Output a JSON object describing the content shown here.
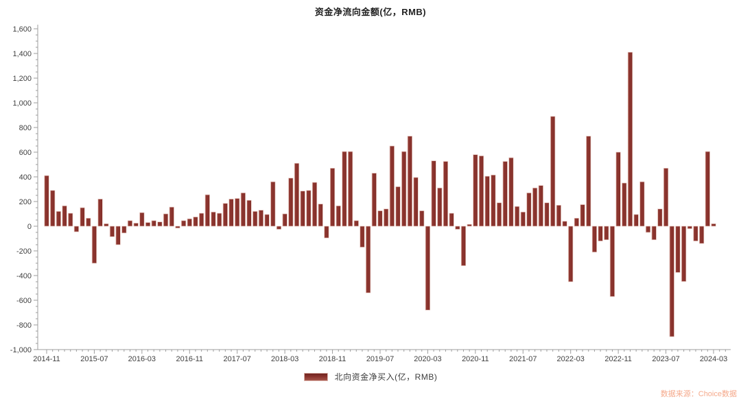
{
  "title": "资金净流向金额(亿，RMB)",
  "legend": {
    "label": "北向资金净买入(亿，RMB)"
  },
  "source": "数据来源：Choice数据",
  "colors": {
    "bar": "#8b342e",
    "bar_highlight": "#a5564b",
    "bar_dark": "#7c2923",
    "bar_edge": "#e6c6bf",
    "axis": "#9c9c9c",
    "tick_label": "#3f3f3f",
    "title_text": "#1f1f1f",
    "source_text": "#f5a98b"
  },
  "chart_data": {
    "type": "bar",
    "title": "资金净流向金额(亿，RMB)",
    "legend_position": "bottom",
    "grid": false,
    "ylim": [
      -1000,
      1600
    ],
    "y_tick_step": 200,
    "y_minor_tick_step": 50,
    "y_tick_labels": [
      "1,600",
      "1,400",
      "1,200",
      "1,000",
      "800",
      "600",
      "400",
      "200",
      "0",
      "-200",
      "-400",
      "-600",
      "-800",
      "-1,000"
    ],
    "x_label_interval": 8,
    "x_axis_labels": [
      "2014-11",
      "2015-07",
      "2016-03",
      "2016-11",
      "2017-07",
      "2018-03",
      "2018-11",
      "2019-07",
      "2020-03",
      "2020-11",
      "2021-07",
      "2022-03",
      "2022-11",
      "2023-07",
      "2024-03"
    ],
    "x": [
      "2014-11",
      "2014-12",
      "2015-01",
      "2015-02",
      "2015-03",
      "2015-04",
      "2015-05",
      "2015-06",
      "2015-07",
      "2015-08",
      "2015-09",
      "2015-10",
      "2015-11",
      "2015-12",
      "2016-01",
      "2016-02",
      "2016-03",
      "2016-04",
      "2016-05",
      "2016-06",
      "2016-07",
      "2016-08",
      "2016-09",
      "2016-10",
      "2016-11",
      "2016-12",
      "2017-01",
      "2017-02",
      "2017-03",
      "2017-04",
      "2017-05",
      "2017-06",
      "2017-07",
      "2017-08",
      "2017-09",
      "2017-10",
      "2017-11",
      "2017-12",
      "2018-01",
      "2018-02",
      "2018-03",
      "2018-04",
      "2018-05",
      "2018-06",
      "2018-07",
      "2018-08",
      "2018-09",
      "2018-10",
      "2018-11",
      "2018-12",
      "2019-01",
      "2019-02",
      "2019-03",
      "2019-04",
      "2019-05",
      "2019-06",
      "2019-07",
      "2019-08",
      "2019-09",
      "2019-10",
      "2019-11",
      "2019-12",
      "2020-01",
      "2020-02",
      "2020-03",
      "2020-04",
      "2020-05",
      "2020-06",
      "2020-07",
      "2020-08",
      "2020-09",
      "2020-10",
      "2020-11",
      "2020-12",
      "2021-01",
      "2021-02",
      "2021-03",
      "2021-04",
      "2021-05",
      "2021-06",
      "2021-07",
      "2021-08",
      "2021-09",
      "2021-10",
      "2021-11",
      "2021-12",
      "2022-01",
      "2022-02",
      "2022-03",
      "2022-04",
      "2022-05",
      "2022-06",
      "2022-07",
      "2022-08",
      "2022-09",
      "2022-10",
      "2022-11",
      "2022-12",
      "2023-01",
      "2023-02",
      "2023-03",
      "2023-04",
      "2023-05",
      "2023-06",
      "2023-07",
      "2023-08",
      "2023-09",
      "2023-10",
      "2023-11",
      "2023-12",
      "2024-01",
      "2024-02",
      "2024-03"
    ],
    "series": [
      {
        "name": "北向资金净买入(亿，RMB)",
        "values": [
          410,
          290,
          120,
          165,
          105,
          -45,
          150,
          65,
          -300,
          220,
          20,
          -85,
          -150,
          -55,
          45,
          25,
          110,
          30,
          45,
          35,
          100,
          155,
          -15,
          45,
          60,
          75,
          105,
          255,
          115,
          105,
          185,
          220,
          225,
          270,
          210,
          120,
          130,
          95,
          360,
          -25,
          100,
          390,
          510,
          285,
          290,
          355,
          180,
          -95,
          470,
          165,
          605,
          605,
          45,
          -170,
          -540,
          430,
          125,
          140,
          650,
          320,
          605,
          730,
          395,
          125,
          -680,
          530,
          310,
          525,
          105,
          -25,
          -320,
          15,
          580,
          570,
          405,
          415,
          190,
          525,
          555,
          160,
          115,
          270,
          310,
          330,
          190,
          890,
          170,
          40,
          -450,
          65,
          175,
          730,
          -210,
          -120,
          -110,
          -570,
          600,
          350,
          1410,
          95,
          360,
          -50,
          -110,
          140,
          470,
          -895,
          -375,
          -448,
          -20,
          -120,
          -140,
          605,
          20
        ]
      }
    ]
  }
}
